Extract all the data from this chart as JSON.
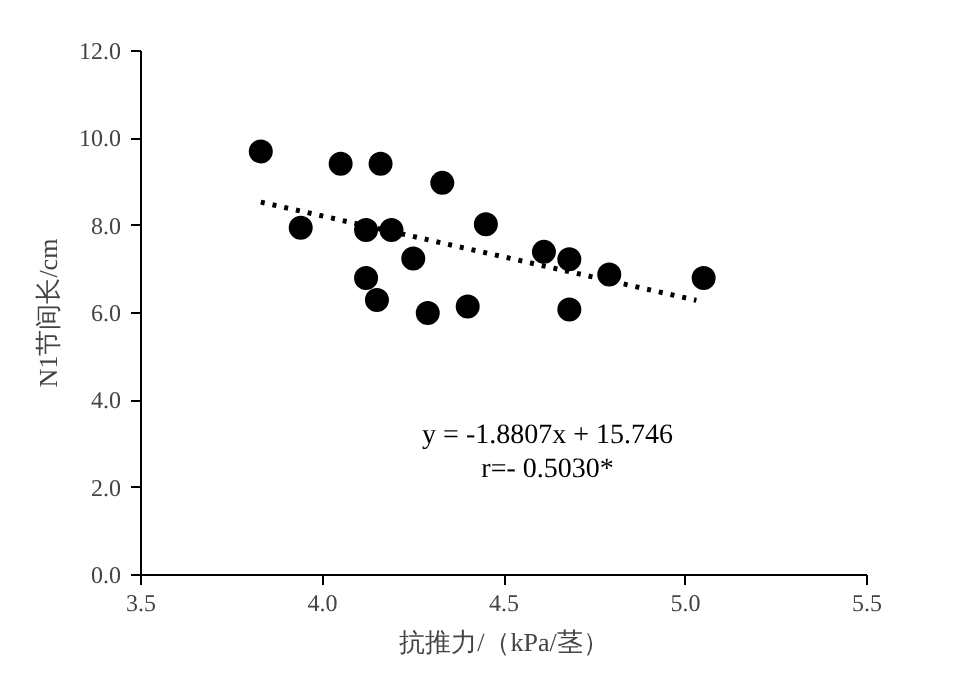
{
  "chart_data": {
    "type": "scatter",
    "xlabel": "抗推力/（kPa/茎）",
    "ylabel": "N1节间长/cm",
    "xlim": [
      3.5,
      5.5
    ],
    "ylim": [
      0,
      12
    ],
    "xticks": [
      {
        "value": 3.5,
        "label": "3.5"
      },
      {
        "value": 4.0,
        "label": "4.0"
      },
      {
        "value": 4.5,
        "label": "4.5"
      },
      {
        "value": 5.0,
        "label": "5.0"
      },
      {
        "value": 5.5,
        "label": "5.5"
      }
    ],
    "yticks": [
      {
        "value": 0,
        "label": "0.0"
      },
      {
        "value": 2,
        "label": "2.0"
      },
      {
        "value": 4,
        "label": "4.0"
      },
      {
        "value": 6,
        "label": "6.0"
      },
      {
        "value": 8,
        "label": "8.0"
      },
      {
        "value": 10,
        "label": "10.0"
      },
      {
        "value": 12,
        "label": "12.0"
      }
    ],
    "grid": false,
    "series": [
      {
        "marker": "circle",
        "color": "#000000",
        "x": [
          3.83,
          3.94,
          4.05,
          4.16,
          4.33,
          4.12,
          4.19,
          4.12,
          4.15,
          4.25,
          4.29,
          4.4,
          4.45,
          4.61,
          4.68,
          4.68,
          4.79,
          5.05
        ],
        "values": [
          9.7,
          7.95,
          9.42,
          9.42,
          8.98,
          7.9,
          7.9,
          6.8,
          6.3,
          7.25,
          6.0,
          6.15,
          8.03,
          7.4,
          7.23,
          6.08,
          6.88,
          6.8
        ]
      },
      {
        "type": "line",
        "marker": "none",
        "color": "#000000",
        "line_style": "dotted",
        "x": [
          3.83,
          5.03
        ],
        "values": [
          8.54,
          6.29
        ]
      }
    ],
    "annotations": [
      "y = -1.8807x + 15.746",
      "r=- 0.5030*"
    ]
  }
}
